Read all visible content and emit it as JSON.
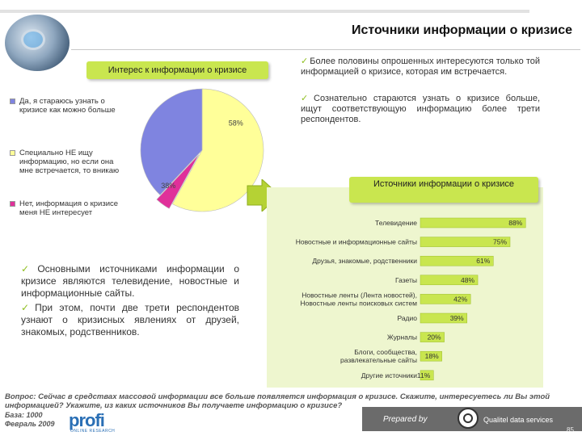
{
  "header": {
    "title": "Источники информации о кризисе"
  },
  "interest_chart": {
    "title": "Интерес к информации о кризисе",
    "legend": [
      {
        "label": "Да, я стараюсь узнать о кризисе как можно больше",
        "color": "#7f84e0"
      },
      {
        "label": "Специально НЕ ищу информацию, но если она мне встречается, то вникаю",
        "color": "#ffff99"
      },
      {
        "label": "Нет, информация о кризисе меня НЕ интересует",
        "color": "#e0309a"
      }
    ]
  },
  "top_right_bullets": [
    "Более половины опрошенных интересуются только той информацией о кризисе, которая им встречается.",
    "Сознательно стараются узнать о кризисе больше, ищут соответствующую информацию более трети респондентов."
  ],
  "sources_chart": {
    "title": "Источники информации о кризисе"
  },
  "bottom_left_bullets": [
    "Основными источниками информации о кризисе являются телевидение, новостные и информационные сайты.",
    "При этом, почти две трети респондентов узнают о кризисных явлениях от друзей, знакомых, родственников."
  ],
  "chart_data": [
    {
      "type": "pie",
      "title": "Интерес к информации о кризисе",
      "labels": [
        "Специально НЕ ищу информацию, но если она мне встречается, то вникаю",
        "Да, я стараюсь узнать о кризисе как можно больше",
        "Нет, информация о кризисе меня НЕ интересует"
      ],
      "values": [
        58,
        38,
        4
      ],
      "value_labels": [
        "58%",
        "38%",
        "4%"
      ],
      "colors": [
        "#ffff99",
        "#7f84e0",
        "#e0309a"
      ]
    },
    {
      "type": "bar",
      "orientation": "horizontal",
      "title": "Источники информации о кризисе",
      "categories": [
        "Телевидение",
        "Новостные и информационные сайты",
        "Друзья, знакомые, родственники",
        "Газеты",
        "Новостные ленты (Лента новостей), Новостные ленты поисковых систем",
        "Радио",
        "Журналы",
        "Блоги, сообщества, развлекательные сайты",
        "Другие источники"
      ],
      "values": [
        88,
        75,
        61,
        48,
        42,
        39,
        20,
        18,
        11
      ],
      "value_labels": [
        "88%",
        "75%",
        "61%",
        "48%",
        "42%",
        "39%",
        "20%",
        "18%",
        "11%"
      ],
      "xlim": [
        0,
        100
      ],
      "bar_color": "#c9e64f"
    }
  ],
  "footer": {
    "question": "Вопрос: Сейчас в средствах массовой информации все больше появляется информация о кризисе. Скажите, интересуетесь ли Вы этой информацией? Укажите, из каких источников Вы получаете информацию о кризисе?",
    "base": "База: 1000",
    "date": "Февраль 2009",
    "logo_text": "profi",
    "logo_subtext": "ONLINE RESEARCH",
    "prepared_by": "Prepared by",
    "company": "Qualitel data services",
    "page_number": "85"
  }
}
